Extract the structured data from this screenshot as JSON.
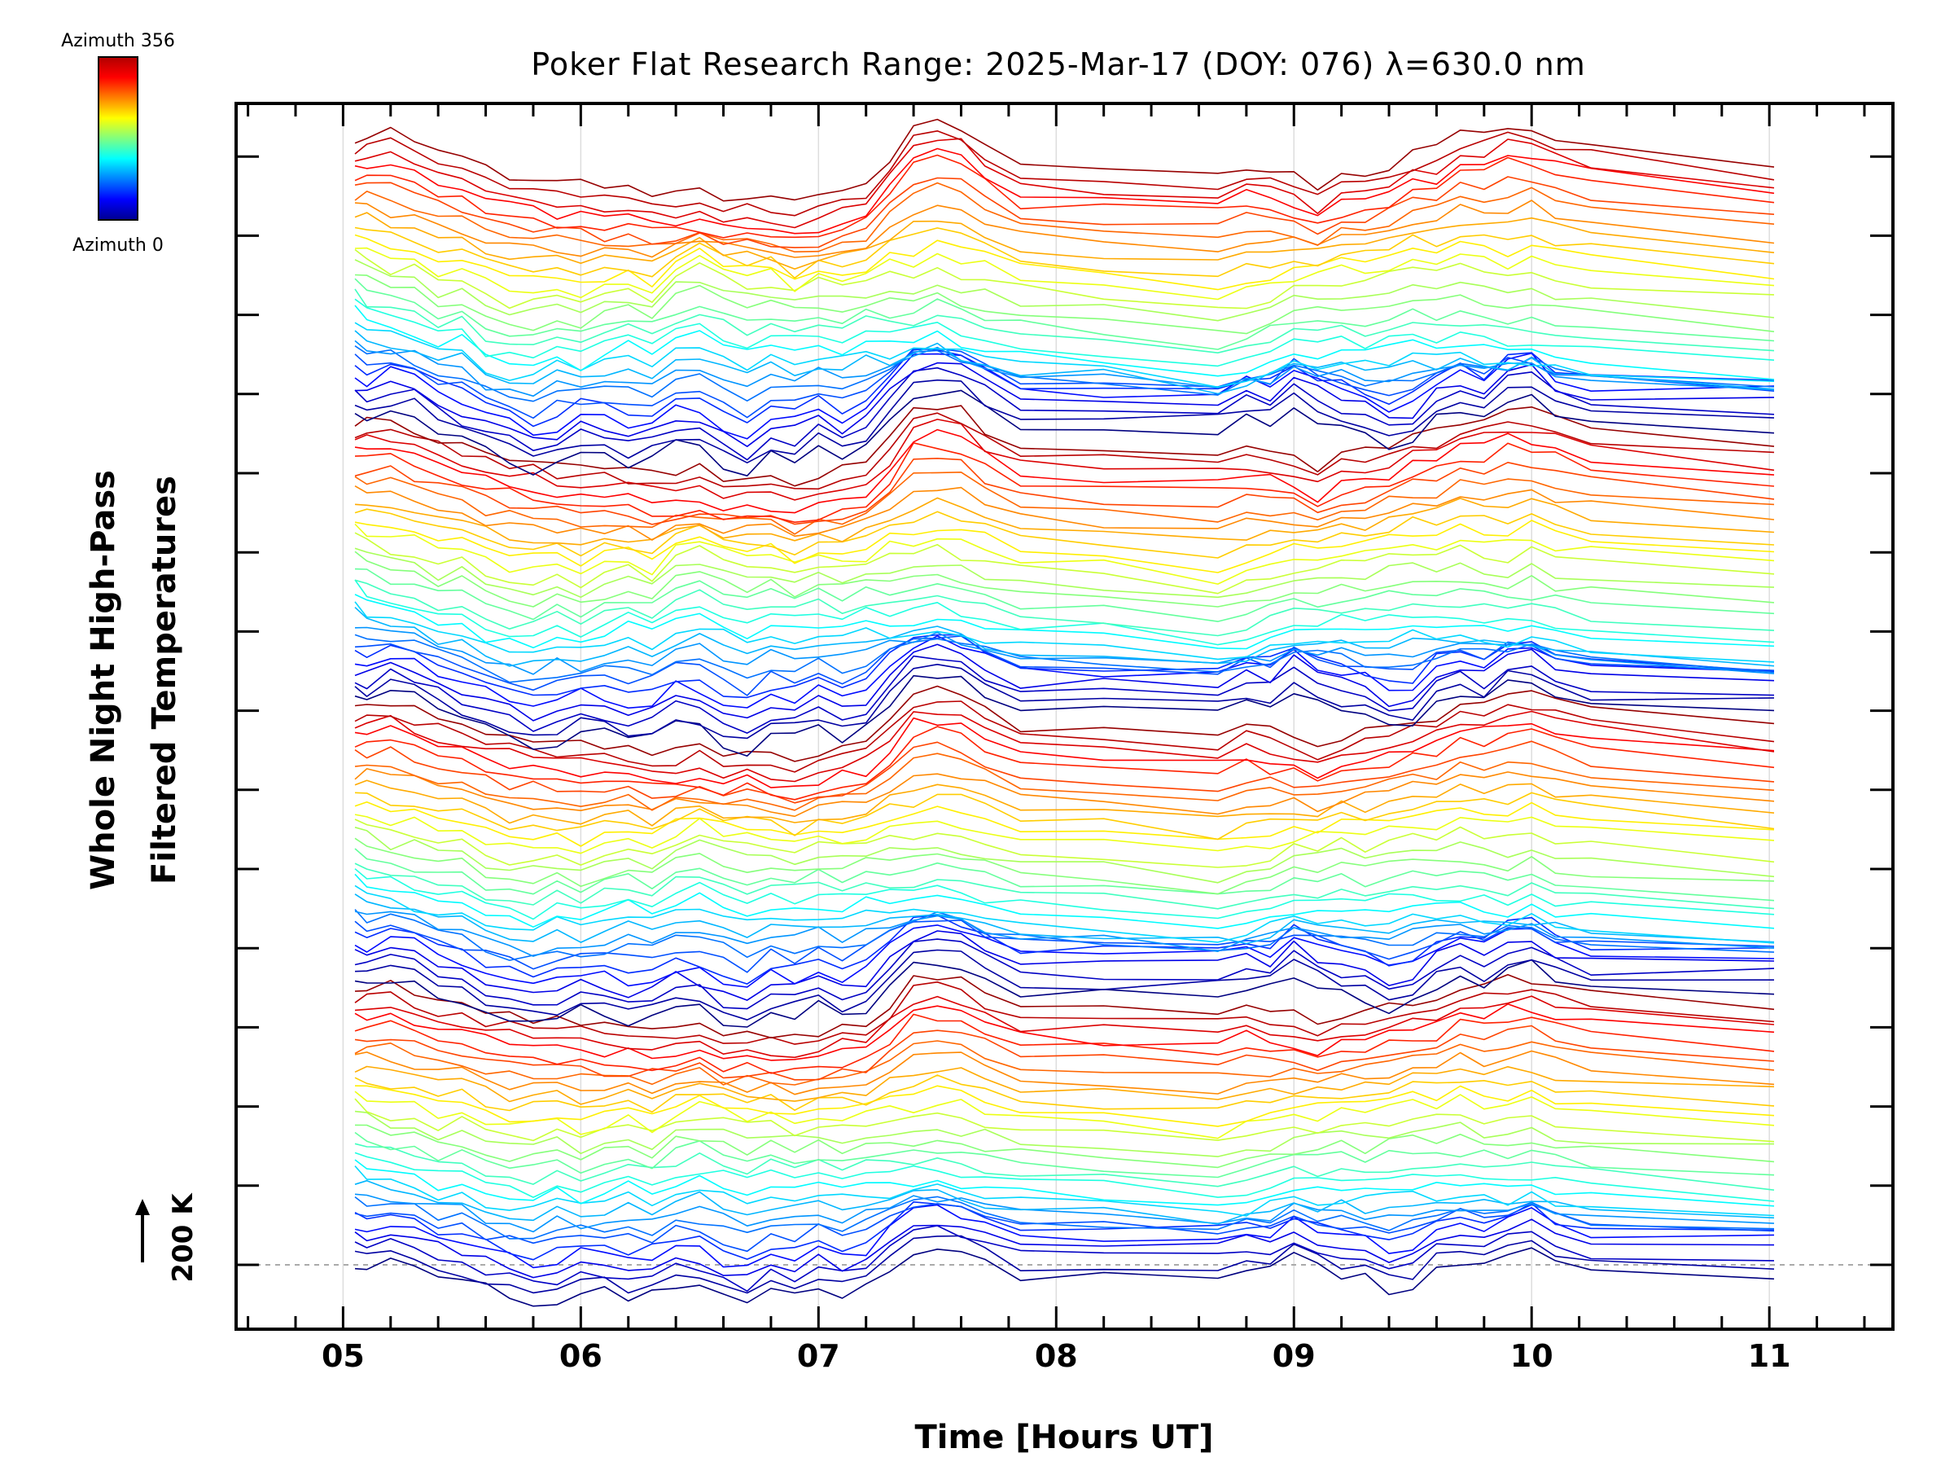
{
  "chart_data": {
    "type": "line",
    "title": "Poker Flat Research Range: 2025-Mar-17 (DOY: 076) λ=630.0 nm",
    "xlabel": "Time [Hours UT]",
    "ylabel_line1": "Whole Night High-Pass",
    "ylabel_line2": "Filtered Temperatures",
    "scale_label": "200 K",
    "xlim": [
      4.55,
      11.52
    ],
    "x_ticks": [
      5,
      6,
      7,
      8,
      9,
      10,
      11
    ],
    "x_tick_labels": [
      "05",
      "06",
      "07",
      "08",
      "09",
      "10",
      "11"
    ],
    "grid": "vertical at each hour",
    "colorbar": {
      "top_label": "Azimuth 356",
      "bottom_label": "Azimuth 0",
      "azimuth_range": [
        0,
        356
      ]
    },
    "stack": {
      "count": 120,
      "azimuth_step": 12,
      "group_size": 30,
      "group_count": 4,
      "offset_per_trace_K": 200,
      "note": "Traces stacked with a constant vertical offset, colored by azimuth (0 = dark blue, 356 = red)."
    },
    "times": [
      5.05,
      5.1,
      5.2,
      5.3,
      5.4,
      5.5,
      5.6,
      5.7,
      5.8,
      5.9,
      6.0,
      6.1,
      6.2,
      6.3,
      6.4,
      6.5,
      6.6,
      6.7,
      6.8,
      6.9,
      7.0,
      7.1,
      7.2,
      7.3,
      7.4,
      7.5,
      7.6,
      7.7,
      7.85,
      8.2,
      8.68,
      8.8,
      8.9,
      9.0,
      9.1,
      9.2,
      9.3,
      9.4,
      9.5,
      9.6,
      9.7,
      9.8,
      9.9,
      10.0,
      10.1,
      10.25,
      11.02
    ],
    "base_profiles": {
      "blue": [
        0,
        -0.1,
        0.1,
        0.05,
        -0.3,
        -0.5,
        -0.7,
        -0.9,
        -1.1,
        -1.0,
        -0.7,
        -0.8,
        -1.0,
        -0.9,
        -0.6,
        -0.7,
        -1.0,
        -1.2,
        -0.8,
        -0.9,
        -0.6,
        -0.9,
        -0.7,
        -0.1,
        0.4,
        0.5,
        0.4,
        0.1,
        -0.3,
        -0.3,
        -0.3,
        -0.1,
        -0.2,
        0.2,
        -0.1,
        -0.3,
        -0.4,
        -0.7,
        -0.6,
        -0.1,
        0.1,
        -0.1,
        0.3,
        0.4,
        0.0,
        -0.2,
        -0.3
      ],
      "orange": [
        0,
        0.05,
        0.15,
        -0.1,
        -0.3,
        -0.4,
        -0.6,
        -0.7,
        -0.8,
        -0.9,
        -0.9,
        -1.0,
        -1.0,
        -1.1,
        -1.1,
        -1.0,
        -1.2,
        -1.1,
        -1.2,
        -1.3,
        -1.2,
        -1.0,
        -0.9,
        -0.4,
        0.3,
        0.4,
        0.3,
        -0.1,
        -0.5,
        -0.6,
        -0.7,
        -0.5,
        -0.6,
        -0.7,
        -1.0,
        -0.7,
        -0.6,
        -0.5,
        -0.3,
        -0.2,
        0.1,
        0.1,
        0.3,
        0.3,
        0.1,
        -0.1,
        -0.5
      ],
      "green": [
        0,
        -0.1,
        -0.4,
        -0.3,
        -0.6,
        -0.5,
        -0.8,
        -1.0,
        -0.9,
        -0.8,
        -1.0,
        -0.8,
        -0.7,
        -0.9,
        -0.4,
        -0.2,
        -0.4,
        -0.6,
        -0.5,
        -0.8,
        -0.5,
        -0.7,
        -0.6,
        -0.4,
        -0.5,
        -0.3,
        -0.4,
        -0.5,
        -0.7,
        -0.9,
        -1.2,
        -1.0,
        -0.9,
        -0.7,
        -0.6,
        -0.5,
        -0.6,
        -0.4,
        -0.3,
        -0.4,
        -0.2,
        -0.4,
        -0.5,
        -0.3,
        -0.5,
        -0.6,
        -0.9
      ],
      "cyan": [
        0,
        -0.2,
        -0.3,
        -0.5,
        -0.7,
        -0.6,
        -1.0,
        -1.1,
        -1.2,
        -0.9,
        -1.1,
        -0.9,
        -0.7,
        -0.9,
        -0.6,
        -0.5,
        -0.7,
        -0.9,
        -0.7,
        -0.8,
        -0.7,
        -0.8,
        -0.6,
        -0.7,
        -0.6,
        -0.5,
        -0.7,
        -0.8,
        -0.9,
        -1.0,
        -1.3,
        -1.2,
        -1.0,
        -0.8,
        -0.9,
        -0.8,
        -0.9,
        -0.8,
        -0.7,
        -0.8,
        -0.7,
        -0.8,
        -0.9,
        -0.8,
        -0.9,
        -1.0,
        -1.3
      ]
    }
  }
}
